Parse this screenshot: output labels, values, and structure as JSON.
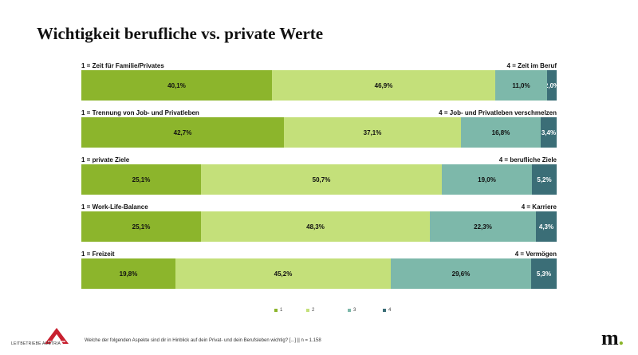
{
  "title": "Wichtigkeit berufliche vs. private Werte",
  "chart_data": {
    "type": "bar",
    "orientation": "horizontal",
    "stacked": true,
    "title": "Wichtigkeit berufliche vs. private Werte",
    "series": [
      {
        "name": "1",
        "color": "#8cb52c"
      },
      {
        "name": "2",
        "color": "#c4e07a"
      },
      {
        "name": "3",
        "color": "#7db8aa"
      },
      {
        "name": "4",
        "color": "#3b6e77"
      }
    ],
    "rows": [
      {
        "left_label": "1 = Zeit für Familie/Privates",
        "right_label": "4 = Zeit im Beruf",
        "values": [
          40.1,
          46.9,
          11.0,
          2.0
        ],
        "value_labels": [
          "40,1%",
          "46,9%",
          "11,0%",
          "2,0%"
        ]
      },
      {
        "left_label": "1 = Trennung von Job- und Privatleben",
        "right_label": "4 = Job- und Privatleben verschmelzen",
        "values": [
          42.7,
          37.1,
          16.8,
          3.4
        ],
        "value_labels": [
          "42,7%",
          "37,1%",
          "16,8%",
          "3,4%"
        ]
      },
      {
        "left_label": "1 = private Ziele",
        "right_label": "4 = berufliche Ziele",
        "values": [
          25.1,
          50.7,
          19.0,
          5.2
        ],
        "value_labels": [
          "25,1%",
          "50,7%",
          "19,0%",
          "5,2%"
        ]
      },
      {
        "left_label": "1 = Work-Life-Balance",
        "right_label": "4 = Karriere",
        "values": [
          25.1,
          48.3,
          22.3,
          4.3
        ],
        "value_labels": [
          "25,1%",
          "48,3%",
          "22,3%",
          "4,3%"
        ]
      },
      {
        "left_label": "1 = Freizeit",
        "right_label": "4 = Vermögen",
        "values": [
          19.8,
          45.2,
          29.6,
          5.3
        ],
        "value_labels": [
          "19,8%",
          "45,2%",
          "29,6%",
          "5,3%"
        ]
      }
    ],
    "legend": [
      "1",
      "2",
      "3",
      "4"
    ],
    "legend_position": "bottom"
  },
  "footnote": "Welche der folgenden Aspekte sind dir in Hinblick auf dein Privat- und dein Berufsleben wichtig? [...] || n = 1.158",
  "logo_left_text": "LEITBETRIEBE AUSTRIA",
  "logo_right_text": "m",
  "logo_right_dot": "."
}
